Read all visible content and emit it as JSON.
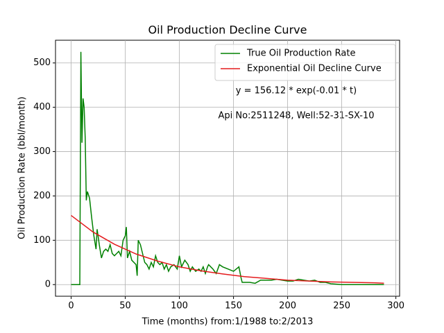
{
  "chart_data": {
    "type": "line",
    "title": "Oil Production Decline Curve",
    "x_label": "Time (months) from:1/1988 to:2/2013",
    "y_label": "Oil Production Rate (bbl/month)",
    "annotations": [
      "y = 156.12 * exp(-0.01 * t)",
      "Api No:2511248, Well:52-31-SX-10"
    ],
    "xlim": [
      -14.45,
      303.45
    ],
    "ylim": [
      -26.25,
      551.25
    ],
    "xticks": [
      0,
      50,
      100,
      150,
      200,
      250,
      300
    ],
    "yticks": [
      0,
      100,
      200,
      300,
      400,
      500
    ],
    "grid": true,
    "legend": "upper right",
    "series": [
      {
        "name": "True Oil Production Rate",
        "color": "#008000",
        "x": [
          0,
          8,
          9,
          10,
          11,
          12,
          13,
          14,
          15,
          17,
          19,
          21,
          23,
          24,
          26,
          28,
          30,
          32,
          34,
          36,
          38,
          40,
          42,
          44,
          46,
          48,
          50,
          51,
          52,
          54,
          56,
          58,
          60,
          61,
          62,
          64,
          66,
          68,
          70,
          72,
          74,
          76,
          78,
          80,
          82,
          84,
          86,
          88,
          90,
          92,
          95,
          98,
          100,
          102,
          105,
          108,
          110,
          112,
          115,
          118,
          120,
          122,
          124,
          126,
          127,
          129,
          131,
          134,
          137,
          140,
          145,
          150,
          155,
          157,
          158,
          160,
          165,
          170,
          175,
          180,
          185,
          190,
          195,
          200,
          205,
          210,
          215,
          220,
          225,
          230,
          235,
          240,
          250,
          260,
          270,
          280,
          289
        ],
        "values": [
          0,
          0,
          525,
          320,
          420,
          400,
          330,
          190,
          210,
          195,
          150,
          110,
          80,
          125,
          90,
          60,
          75,
          80,
          75,
          90,
          70,
          65,
          70,
          75,
          65,
          100,
          110,
          130,
          60,
          75,
          55,
          50,
          45,
          20,
          100,
          90,
          70,
          50,
          45,
          35,
          50,
          40,
          65,
          50,
          45,
          50,
          35,
          45,
          30,
          40,
          45,
          35,
          65,
          40,
          55,
          45,
          30,
          40,
          30,
          35,
          30,
          40,
          25,
          40,
          45,
          40,
          35,
          25,
          45,
          40,
          35,
          30,
          40,
          15,
          5,
          5,
          5,
          3,
          10,
          10,
          10,
          12,
          10,
          8,
          8,
          12,
          10,
          8,
          10,
          5,
          5,
          2,
          0,
          0,
          0,
          0,
          0
        ]
      },
      {
        "name": "Exponential Oil Decline Curve",
        "color": "#e41a1c",
        "x": [
          0,
          20,
          40,
          60,
          80,
          100,
          120,
          140,
          160,
          180,
          200,
          220,
          240,
          260,
          280,
          289
        ],
        "values": [
          156,
          119,
          91,
          69,
          53,
          40,
          31,
          24,
          18,
          14,
          10,
          8,
          6,
          5,
          4,
          3
        ]
      }
    ]
  }
}
